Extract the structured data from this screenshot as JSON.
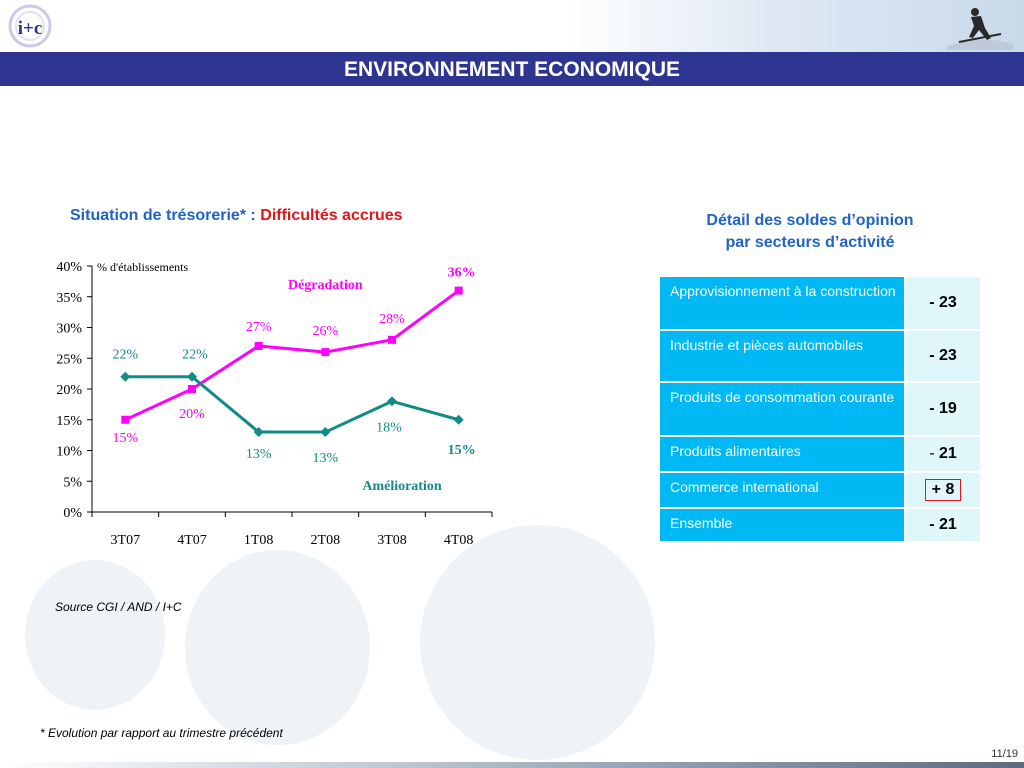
{
  "header": {
    "logo_text": "i+c",
    "title": "ENVIRONNEMENT ECONOMIQUE"
  },
  "chart_section": {
    "title_prefix": "Situation de trésorerie* : ",
    "title_highlight": "Difficultés accrues"
  },
  "chart_data": {
    "type": "line",
    "categories": [
      "3T07",
      "4T07",
      "1T08",
      "2T08",
      "3T08",
      "4T08"
    ],
    "ylim": [
      0,
      40
    ],
    "yticks": [
      "0%",
      "5%",
      "10%",
      "15%",
      "20%",
      "25%",
      "30%",
      "35%",
      "40%"
    ],
    "unit_label": "% d'établissements",
    "series": [
      {
        "name": "Dégradation",
        "color": "#ff00ff",
        "marker": "square",
        "values": [
          15,
          20,
          27,
          26,
          28,
          36
        ],
        "labels": [
          "15%",
          "20%",
          "27%",
          "26%",
          "28%",
          "36%"
        ]
      },
      {
        "name": "Amélioration",
        "color": "#128a86",
        "marker": "diamond",
        "values": [
          22,
          22,
          13,
          13,
          18,
          15
        ],
        "labels": [
          "22%",
          "22%",
          "13%",
          "13%",
          "18%",
          "15%"
        ]
      }
    ],
    "grid": false
  },
  "detail": {
    "title_line1": "Détail des soldes d’opinion",
    "title_line2": "par secteurs d’activité",
    "rows": [
      {
        "label": "Approvisionnement à la construction",
        "value": "- 23"
      },
      {
        "label": "Industrie et pièces automobiles",
        "value": "- 23"
      },
      {
        "label": "Produits de consommation courante",
        "value": "- 19"
      },
      {
        "label": "Produits alimentaires",
        "value_sign": "- ",
        "value_num": "21"
      },
      {
        "label": "Commerce international",
        "value": "+ 8"
      },
      {
        "label": "Ensemble",
        "value": "- 21"
      }
    ],
    "colors": {
      "label_bg": "#00b8f4",
      "value_bg": "#dff6fb",
      "highlight": "#e8141c"
    }
  },
  "footer": {
    "source": "Source CGI / AND / I+C",
    "footnote": "* Evolution par rapport au trimestre précédent",
    "page": "11/19"
  },
  "icons": [
    "logo-icon",
    "skier-icon"
  ],
  "colors": {
    "title_bar": "#2e3590",
    "section_title": "#1f63c6"
  }
}
